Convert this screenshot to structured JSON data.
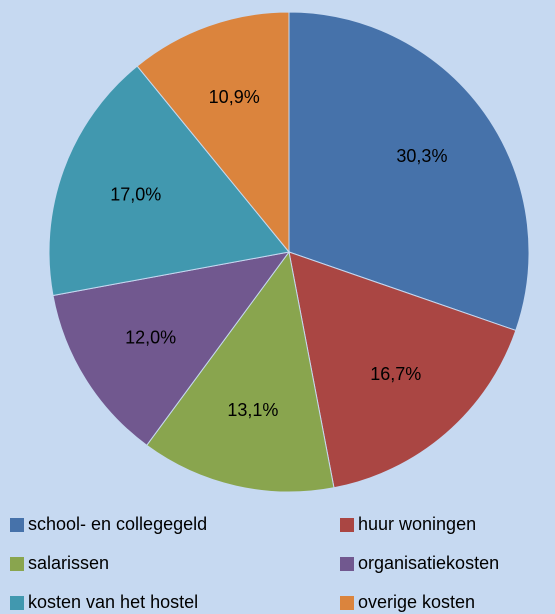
{
  "chart_data": {
    "type": "pie",
    "categories": [
      "school- en collegegeld",
      "huur woningen",
      "salarissen",
      "organisatiekosten",
      "kosten van het hostel",
      "overige kosten"
    ],
    "values": [
      30.3,
      16.7,
      13.1,
      12.0,
      17.0,
      10.9
    ],
    "value_labels": [
      "30,3%",
      "16,7%",
      "13,1%",
      "12,0%",
      "17,0%",
      "10,9%"
    ],
    "colors": [
      "#4672aa",
      "#aa4643",
      "#89a54e",
      "#71588f",
      "#4198af",
      "#db843d"
    ],
    "legend": "bottom"
  }
}
